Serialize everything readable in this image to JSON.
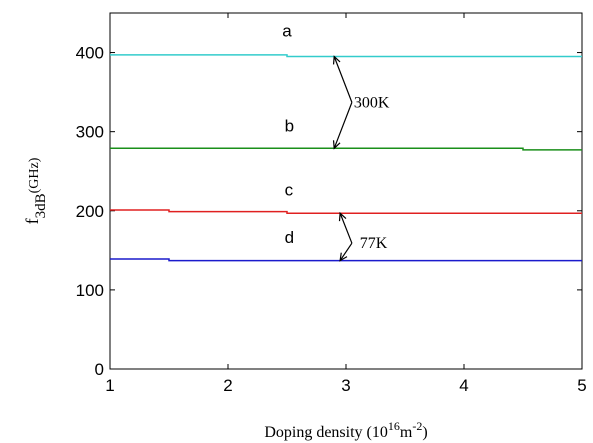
{
  "chart_data": {
    "type": "line",
    "xlabel": {
      "prefix": "Doping density (10",
      "exp1": "16",
      "mid": "m",
      "exp2": "-2",
      "suffix": ")"
    },
    "ylabel": {
      "main": "f",
      "sub": "3dB",
      "unit": "(GHz)"
    },
    "xlim": [
      1,
      5
    ],
    "ylim": [
      0,
      450
    ],
    "x_ticks": [
      1,
      2,
      3,
      4,
      5
    ],
    "y_ticks": [
      0,
      100,
      200,
      300,
      400
    ],
    "grid": false,
    "series": [
      {
        "name": "a",
        "color": "#33cccc",
        "x": [
          1,
          2.5,
          2.5,
          5
        ],
        "y": [
          397,
          397,
          395,
          395
        ]
      },
      {
        "name": "b",
        "color": "#1a8f1a",
        "x": [
          1,
          4.5,
          4.5,
          5
        ],
        "y": [
          279,
          279,
          277,
          277
        ]
      },
      {
        "name": "c",
        "color": "#e02020",
        "x": [
          1,
          1.5,
          1.5,
          2.5,
          2.5,
          5
        ],
        "y": [
          201,
          201,
          199,
          199,
          197,
          197
        ]
      },
      {
        "name": "d",
        "color": "#1a1acc",
        "x": [
          1,
          1.5,
          1.5,
          5
        ],
        "y": [
          139,
          139,
          137,
          137
        ]
      }
    ],
    "annotations": [
      {
        "text": "300K",
        "x": 3.05,
        "y": 337,
        "from": [
          3.05,
          337
        ],
        "to": [
          [
            2.9,
            395
          ],
          [
            2.9,
            279
          ]
        ]
      },
      {
        "text": "77K",
        "x": 3.1,
        "y": 159,
        "from": [
          3.05,
          159
        ],
        "to": [
          [
            2.95,
            197
          ],
          [
            2.95,
            137
          ]
        ]
      }
    ],
    "series_labels": [
      {
        "text": "a",
        "x": 2.46,
        "y": 420
      },
      {
        "text": "b",
        "x": 2.48,
        "y": 300
      },
      {
        "text": "c",
        "x": 2.48,
        "y": 219
      },
      {
        "text": "d",
        "x": 2.48,
        "y": 159
      }
    ]
  }
}
